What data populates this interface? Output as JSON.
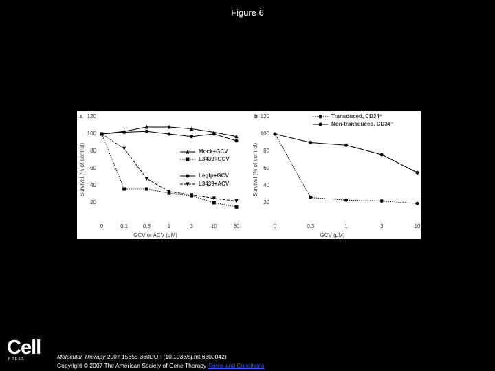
{
  "header": {
    "title": "Figure 6"
  },
  "chart_data": [
    {
      "type": "line",
      "panel": "a",
      "x_label": "GCV or ACV (μM)",
      "y_label": "Survival (% of control)",
      "categories": [
        "0",
        "0.1",
        "0.3",
        "1",
        "3",
        "10",
        "30"
      ],
      "ylim": [
        0,
        120
      ],
      "yticks": [
        20,
        40,
        60,
        80,
        100,
        120
      ],
      "grid": false,
      "series": [
        {
          "name": "Mock+GCV",
          "color": "#000000",
          "style": "solid",
          "marker": "triangle",
          "values": [
            100,
            103,
            108,
            108,
            106,
            102,
            97
          ]
        },
        {
          "name": "L3439+GCV",
          "color": "#000000",
          "style": "dotted",
          "marker": "square",
          "values": [
            100,
            36,
            36,
            31,
            28,
            20,
            15
          ]
        },
        {
          "name": "Legfp+GCV",
          "color": "#000000",
          "style": "solid",
          "marker": "circle",
          "values": [
            100,
            102,
            103,
            100,
            97,
            100,
            92
          ]
        },
        {
          "name": "L3439+ACV",
          "color": "#000000",
          "style": "dashed",
          "marker": "triangle-down",
          "values": [
            100,
            83,
            48,
            33,
            29,
            25,
            22
          ]
        }
      ]
    },
    {
      "type": "line",
      "panel": "b",
      "x_label": "GCV (μM)",
      "y_label": "Survival (% of control)",
      "categories": [
        "0",
        "0.3",
        "1",
        "3",
        "10"
      ],
      "ylim": [
        0,
        120
      ],
      "yticks": [
        20,
        40,
        60,
        80,
        100,
        120
      ],
      "grid": false,
      "series": [
        {
          "name": "Transduced, CD34⁺",
          "color": "#000000",
          "style": "dotted",
          "marker": "circle",
          "values": [
            100,
            26,
            23,
            22,
            19
          ]
        },
        {
          "name": "Non-transduced, CD34⁻",
          "color": "#000000",
          "style": "solid",
          "marker": "circle",
          "values": [
            100,
            90,
            87,
            76,
            55
          ]
        }
      ]
    }
  ],
  "footer": {
    "logo": "Cell",
    "logo_sub": "P R E S S",
    "journal": "Molecular Therapy",
    "citation": " 2007 15355-360DOI: (10.1038/sj.mt.6300042)",
    "copyright": "Copyright © 2007 The American Society of Gene Therapy",
    "link": "Terms and Conditions"
  }
}
